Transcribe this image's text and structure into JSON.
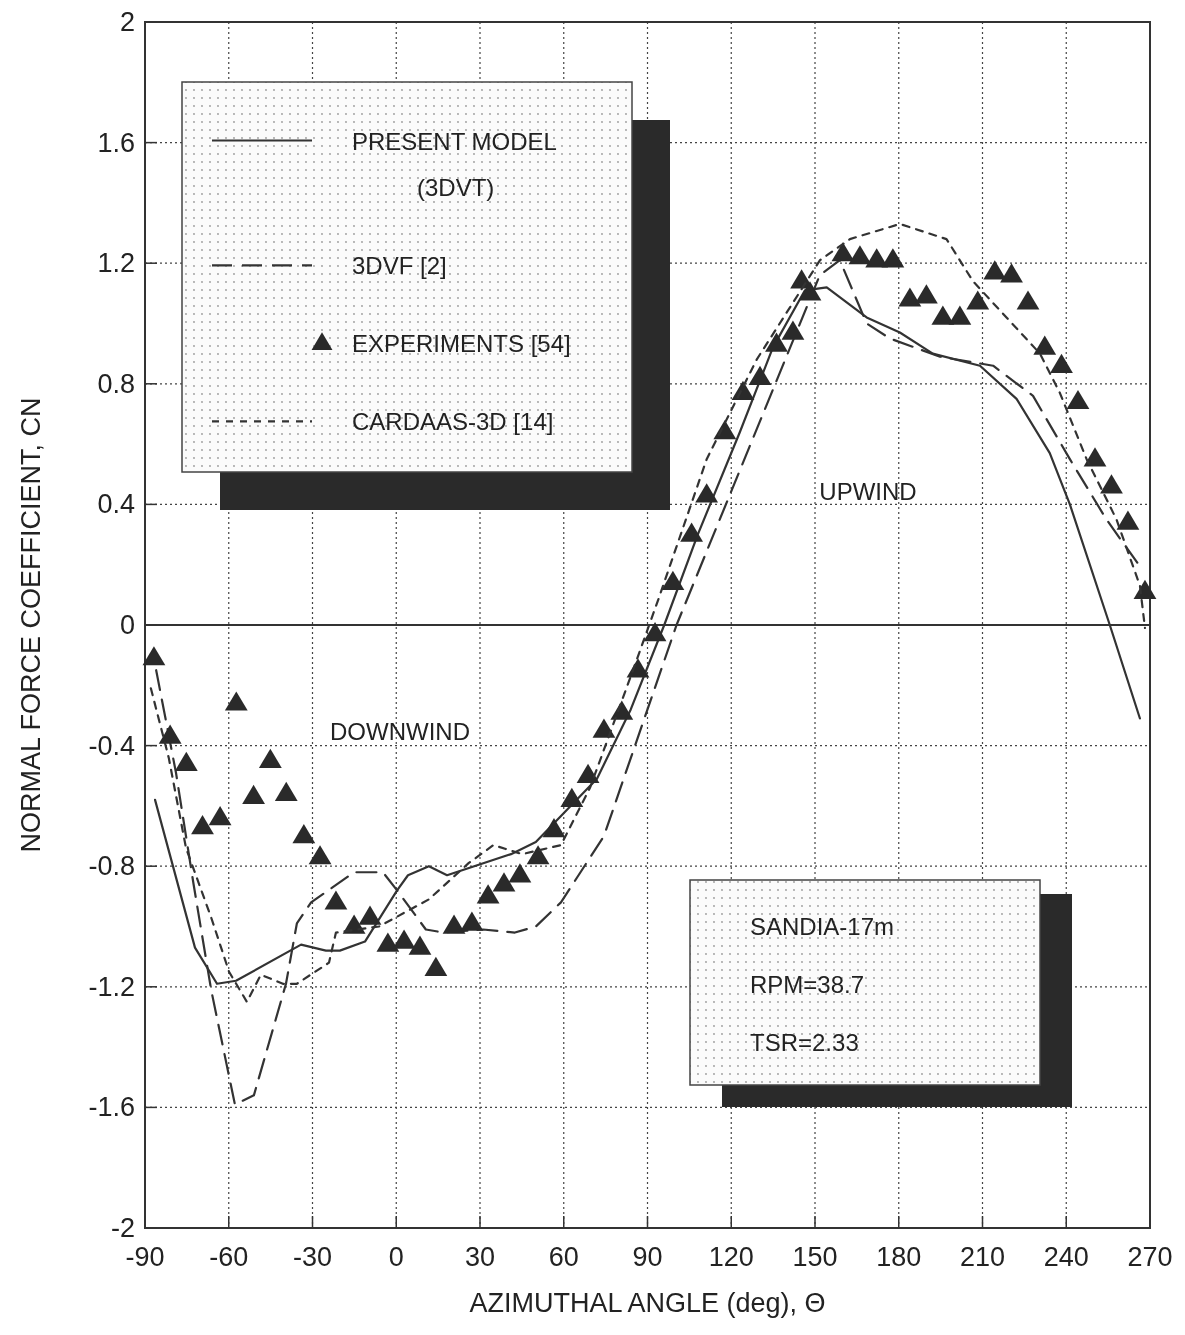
{
  "chart_data": {
    "type": "line",
    "xlabel": "AZIMUTHAL ANGLE (deg), Θ",
    "ylabel": "NORMAL FORCE COEFFICIENT, CN",
    "xlim": [
      -90,
      270
    ],
    "xticks": [
      -90,
      -60,
      -30,
      0,
      30,
      60,
      90,
      120,
      150,
      180,
      210,
      240,
      270
    ],
    "ylim": [
      -2,
      2
    ],
    "yticks": [
      -2,
      -1.6,
      -1.2,
      -0.8,
      -0.4,
      0,
      0.4,
      0.8,
      1.2,
      1.6,
      2
    ],
    "grid": true,
    "legend": "top left",
    "ref_lines": [
      {
        "axis": "y",
        "value": 0,
        "color": "#333333",
        "line_style": "solid"
      }
    ],
    "annotations": [
      "DOWNWIND",
      "UPWIND",
      "SANDIA-17m",
      "RPM=38.7",
      "TSR=2.33"
    ],
    "series": [
      {
        "name": "PRESENT MODEL (3DVT)",
        "line_style": "solid",
        "marker": "none",
        "color": "#333333",
        "x": [
          -86.4,
          -72.1,
          -64.2,
          -57.4,
          -34.1,
          -25.2,
          -20.2,
          -11.2,
          0.3,
          4.2,
          11.7,
          18.2,
          41.1,
          50,
          71.9,
          84,
          96,
          108,
          123.1,
          134.9,
          146.4,
          154.2,
          168.5,
          180.4,
          192.2,
          209.1,
          222.2,
          234.1,
          241.3,
          255.6,
          266.4
        ],
        "values": [
          -0.58,
          -1.07,
          -1.19,
          -1.18,
          -1.06,
          -1.08,
          -1.08,
          -1.05,
          -0.88,
          -0.83,
          -0.8,
          -0.83,
          -0.76,
          -0.72,
          -0.51,
          -0.28,
          0,
          0.3,
          0.64,
          0.92,
          1.11,
          1.12,
          1.02,
          0.97,
          0.9,
          0.86,
          0.75,
          0.57,
          0.4,
          0,
          -0.31
        ]
      },
      {
        "name": "3DVF [2]",
        "line_style": "dashed",
        "marker": "none",
        "color": "#333333",
        "x": [
          -86,
          -78.9,
          -72.6,
          -66.3,
          -57.8,
          -51,
          -39.5,
          -35.6,
          -30.5,
          -15.1,
          -4.8,
          0.3,
          10.6,
          16.9,
          31.1,
          42.5,
          50,
          59,
          74.4,
          100.4,
          151.7,
          158.9,
          168.5,
          176.9,
          194.8,
          213.8,
          228.1,
          241.3,
          254.4,
          267.5
        ],
        "values": [
          -0.15,
          -0.49,
          -0.86,
          -1.21,
          -1.59,
          -1.56,
          -1.19,
          -0.99,
          -0.92,
          -0.82,
          -0.82,
          -0.88,
          -1.01,
          -1.02,
          -1.01,
          -1.02,
          -1,
          -0.92,
          -0.7,
          0,
          1.16,
          1.21,
          1,
          0.95,
          0.89,
          0.86,
          0.76,
          0.55,
          0.35,
          0.18
        ]
      },
      {
        "name": "EXPERIMENTS [54]",
        "type": "scatter",
        "marker": "triangle",
        "color": "#2a2a2a",
        "x": [
          -86.8,
          -81,
          -75.2,
          -69.4,
          -63.1,
          -57.3,
          -51.1,
          -45.1,
          -39.4,
          -33.1,
          -27.3,
          -21.6,
          -15.1,
          -9.4,
          -3,
          2.8,
          8.5,
          14.2,
          20.7,
          27.1,
          32.9,
          38.6,
          44.3,
          50.8,
          56.5,
          62.9,
          68.7,
          74.4,
          80.8,
          86.6,
          92.7,
          99.1,
          105.8,
          111.2,
          117.7,
          124.2,
          130.3,
          136.2,
          142.1,
          145.2,
          148.2,
          160,
          166.1,
          172.1,
          177.9,
          184,
          189.9,
          195.8,
          201.9,
          208.3,
          214.4,
          220.4,
          226.3,
          232.3,
          238.3,
          244.2,
          250.3,
          256.2,
          262.1,
          268.2
        ],
        "values": [
          -0.11,
          -0.37,
          -0.46,
          -0.67,
          -0.64,
          -0.26,
          -0.57,
          -0.45,
          -0.56,
          -0.7,
          -0.77,
          -0.92,
          -1,
          -0.97,
          -1.06,
          -1.05,
          -1.07,
          -1.14,
          -1,
          -0.99,
          -0.9,
          -0.86,
          -0.83,
          -0.77,
          -0.68,
          -0.58,
          -0.5,
          -0.35,
          -0.29,
          -0.15,
          -0.03,
          0.14,
          0.3,
          0.43,
          0.64,
          0.77,
          0.82,
          0.93,
          0.97,
          1.14,
          1.1,
          1.23,
          1.22,
          1.21,
          1.21,
          1.08,
          1.09,
          1.02,
          1.02,
          1.07,
          1.17,
          1.16,
          1.07,
          0.92,
          0.86,
          0.74,
          0.55,
          0.46,
          0.34,
          0.11
        ]
      },
      {
        "name": "CARDAAS-3D [14]",
        "line_style": "dashed",
        "marker": "none",
        "color": "#333333",
        "x": [
          -87.9,
          -81.5,
          -75.3,
          -66.3,
          -59.9,
          -53.5,
          -48.5,
          -40.6,
          -35.6,
          -24.1,
          -21.6,
          -6.2,
          11.7,
          25.9,
          34.8,
          45.1,
          59,
          69.4,
          84.8,
          93.7,
          111.2,
          129.1,
          151.8,
          162.5,
          180.4,
          197.1,
          206.6,
          218.6,
          230.6,
          237.7,
          247.3,
          258,
          266.4,
          268.2
        ],
        "values": [
          -0.21,
          -0.44,
          -0.74,
          -0.97,
          -1.15,
          -1.25,
          -1.16,
          -1.19,
          -1.19,
          -1.12,
          -1.02,
          -1,
          -0.91,
          -0.79,
          -0.73,
          -0.76,
          -0.73,
          -0.54,
          -0.15,
          0.08,
          0.55,
          0.88,
          1.21,
          1.28,
          1.33,
          1.28,
          1.14,
          1.02,
          0.9,
          0.77,
          0.55,
          0.35,
          0.13,
          -0.01
        ]
      }
    ]
  }
}
